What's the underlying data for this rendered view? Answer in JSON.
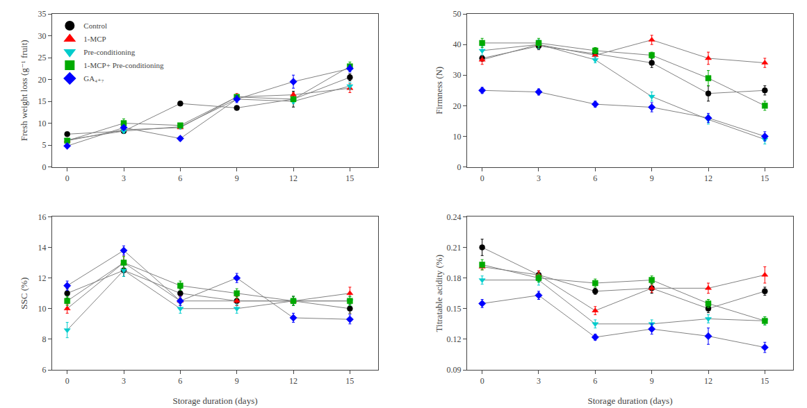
{
  "chart_data": [
    {
      "type": "line",
      "ylabel": "Fresh weight loss (g⁻¹ fruit)",
      "x": [
        0,
        3,
        6,
        9,
        12,
        15
      ],
      "xlim": [
        -0.8,
        16.5
      ],
      "xticks": [
        0,
        3,
        6,
        9,
        12,
        15
      ],
      "ylim": [
        0,
        35
      ],
      "yticks": [
        0,
        5,
        10,
        15,
        20,
        25,
        30,
        35
      ],
      "color": "#808080",
      "line_style": "solid",
      "grid": false,
      "legend": "upper left",
      "series": [
        {
          "name": "Control",
          "color": "#000000",
          "marker": "circle",
          "values": [
            7.5,
            8.2,
            14.5,
            13.5,
            15.5,
            20.5
          ],
          "errors": [
            0.4,
            0.4,
            0.5,
            0.3,
            1.8,
            0.8
          ]
        },
        {
          "name": "1-MCP",
          "color": "#ff0000",
          "marker": "triangle-up",
          "values": [
            6.0,
            8.5,
            9.0,
            16.0,
            16.5,
            18.0
          ],
          "errors": [
            0.3,
            0.4,
            0.3,
            0.8,
            0.5,
            1.0
          ]
        },
        {
          "name": "Pre-conditioning",
          "color": "#00cccc",
          "marker": "triangle-down",
          "values": [
            6.2,
            8.2,
            9.2,
            15.5,
            15.0,
            18.5
          ],
          "errors": [
            0.3,
            0.4,
            0.5,
            0.5,
            0.5,
            0.8
          ]
        },
        {
          "name": "1-MCP+ Pre-conditioning",
          "color": "#00aa00",
          "marker": "square",
          "values": [
            6.0,
            10.0,
            9.5,
            16.0,
            15.5,
            23.0
          ],
          "errors": [
            0.3,
            1.0,
            0.3,
            0.4,
            0.4,
            1.0
          ]
        },
        {
          "name": "GA₄₊₇",
          "color": "#0000ff",
          "marker": "diamond",
          "values": [
            4.8,
            9.0,
            6.5,
            15.5,
            19.5,
            22.5
          ],
          "errors": [
            0.3,
            0.4,
            0.5,
            0.8,
            1.5,
            0.8
          ]
        }
      ]
    },
    {
      "type": "line",
      "ylabel": "Firmness (N)",
      "x": [
        0,
        3,
        6,
        9,
        12,
        15
      ],
      "xlim": [
        -0.8,
        16.5
      ],
      "xticks": [
        0,
        3,
        6,
        9,
        12,
        15
      ],
      "ylim": [
        0,
        50
      ],
      "yticks": [
        0,
        10,
        20,
        30,
        40,
        50
      ],
      "color": "#808080",
      "line_style": "solid",
      "grid": false,
      "series": [
        {
          "name": "Control",
          "color": "#000000",
          "marker": "circle",
          "values": [
            35.5,
            39.5,
            37.0,
            34.0,
            24.0,
            25.0
          ],
          "errors": [
            1.0,
            1.2,
            1.0,
            1.5,
            2.5,
            1.5
          ]
        },
        {
          "name": "1-MCP",
          "color": "#ff0000",
          "marker": "triangle-up",
          "values": [
            35.0,
            40.0,
            36.5,
            41.5,
            35.5,
            34.0
          ],
          "errors": [
            1.5,
            1.5,
            1.2,
            1.5,
            2.0,
            1.5
          ]
        },
        {
          "name": "Pre-conditioning",
          "color": "#00cccc",
          "marker": "triangle-down",
          "values": [
            38.0,
            40.0,
            35.0,
            23.0,
            15.5,
            9.0
          ],
          "errors": [
            1.5,
            1.5,
            1.0,
            1.5,
            1.5,
            1.5
          ]
        },
        {
          "name": "1-MCP+ Pre-conditioning",
          "color": "#00aa00",
          "marker": "square",
          "values": [
            40.5,
            40.5,
            38.0,
            36.5,
            29.0,
            20.0
          ],
          "errors": [
            1.5,
            1.5,
            1.0,
            1.0,
            2.5,
            1.5
          ]
        },
        {
          "name": "GA₄₊₇",
          "color": "#0000ff",
          "marker": "diamond",
          "values": [
            25.0,
            24.5,
            20.5,
            19.5,
            16.0,
            10.0
          ],
          "errors": [
            1.0,
            1.0,
            1.0,
            1.5,
            1.5,
            1.5
          ]
        }
      ]
    },
    {
      "type": "line",
      "ylabel": "SSC (%)",
      "xlabel": "Storage duration (days)",
      "x": [
        0,
        3,
        6,
        9,
        12,
        15
      ],
      "xlim": [
        -0.8,
        16.5
      ],
      "xticks": [
        0,
        3,
        6,
        9,
        12,
        15
      ],
      "ylim": [
        6,
        16
      ],
      "yticks": [
        6,
        8,
        10,
        12,
        14,
        16
      ],
      "color": "#808080",
      "line_style": "solid",
      "grid": false,
      "series": [
        {
          "name": "Control",
          "color": "#000000",
          "marker": "circle",
          "values": [
            11.0,
            12.5,
            11.0,
            10.5,
            10.5,
            10.0
          ],
          "errors": [
            0.3,
            0.4,
            0.3,
            0.3,
            0.3,
            0.3
          ]
        },
        {
          "name": "1-MCP",
          "color": "#ff0000",
          "marker": "triangle-up",
          "values": [
            10.0,
            13.0,
            10.5,
            10.5,
            10.5,
            11.0
          ],
          "errors": [
            0.3,
            0.5,
            0.3,
            0.3,
            0.3,
            0.4
          ]
        },
        {
          "name": "Pre-conditioning",
          "color": "#00cccc",
          "marker": "triangle-down",
          "values": [
            8.6,
            12.5,
            10.0,
            10.0,
            10.5,
            10.5
          ],
          "errors": [
            0.5,
            0.4,
            0.3,
            0.3,
            0.3,
            0.3
          ]
        },
        {
          "name": "1-MCP+ Pre-conditioning",
          "color": "#00aa00",
          "marker": "square",
          "values": [
            10.5,
            13.0,
            11.5,
            11.0,
            10.5,
            10.5
          ],
          "errors": [
            0.3,
            0.4,
            0.3,
            0.3,
            0.3,
            0.3
          ]
        },
        {
          "name": "GA₄₊₇",
          "color": "#0000ff",
          "marker": "diamond",
          "values": [
            11.5,
            13.8,
            10.5,
            12.0,
            9.4,
            9.3
          ],
          "errors": [
            0.3,
            0.3,
            0.3,
            0.3,
            0.3,
            0.3
          ]
        }
      ]
    },
    {
      "type": "line",
      "ylabel": "Titratable acidity (%)",
      "xlabel": "Storage duration (days)",
      "x": [
        0,
        3,
        6,
        9,
        12,
        15
      ],
      "xlim": [
        -0.8,
        16.5
      ],
      "xticks": [
        0,
        3,
        6,
        9,
        12,
        15
      ],
      "ylim": [
        0.09,
        0.24
      ],
      "yticks": [
        0.09,
        0.12,
        0.15,
        0.18,
        0.21,
        0.24
      ],
      "color": "#808080",
      "line_style": "solid",
      "grid": false,
      "series": [
        {
          "name": "Control",
          "color": "#000000",
          "marker": "circle",
          "values": [
            0.21,
            0.183,
            0.167,
            0.17,
            0.15,
            0.167
          ],
          "errors": [
            0.008,
            0.004,
            0.003,
            0.005,
            0.004,
            0.004
          ]
        },
        {
          "name": "1-MCP",
          "color": "#ff0000",
          "marker": "triangle-up",
          "values": [
            0.191,
            0.183,
            0.148,
            0.17,
            0.17,
            0.183
          ],
          "errors": [
            0.003,
            0.004,
            0.004,
            0.004,
            0.005,
            0.008
          ]
        },
        {
          "name": "Pre-conditioning",
          "color": "#00cccc",
          "marker": "triangle-down",
          "values": [
            0.178,
            0.178,
            0.135,
            0.135,
            0.14,
            0.138
          ],
          "errors": [
            0.004,
            0.005,
            0.004,
            0.004,
            0.004,
            0.004
          ]
        },
        {
          "name": "1-MCP+ Pre-conditioning",
          "color": "#00aa00",
          "marker": "square",
          "values": [
            0.193,
            0.18,
            0.175,
            0.178,
            0.155,
            0.138
          ],
          "errors": [
            0.005,
            0.004,
            0.004,
            0.004,
            0.004,
            0.004
          ]
        },
        {
          "name": "GA₄₊₇",
          "color": "#0000ff",
          "marker": "diamond",
          "values": [
            0.155,
            0.163,
            0.122,
            0.13,
            0.123,
            0.112
          ],
          "errors": [
            0.004,
            0.004,
            0.003,
            0.005,
            0.008,
            0.005
          ]
        }
      ]
    }
  ]
}
